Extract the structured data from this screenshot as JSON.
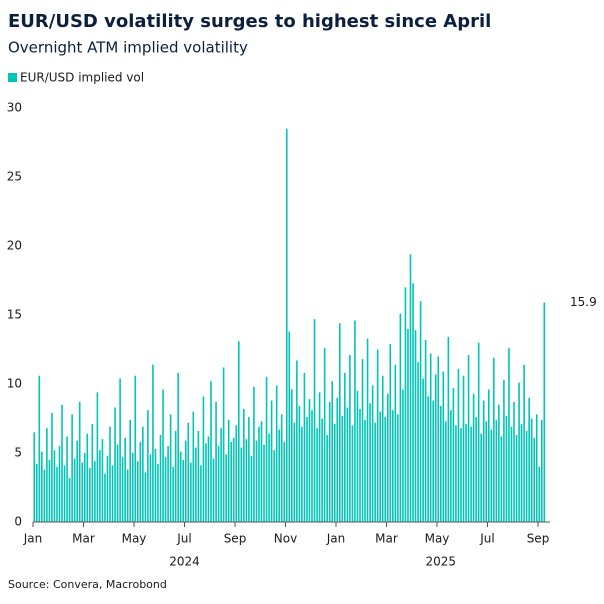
{
  "chart_data": {
    "type": "bar",
    "title": "EUR/USD volatility surges to highest since April",
    "subtitle": "Overnight ATM implied volatility",
    "source": "Source: Convera, Macrobond",
    "categories": [
      "Jan",
      null,
      null,
      null,
      null,
      null,
      null,
      null,
      null,
      null,
      null,
      null,
      null,
      null,
      null,
      null,
      null,
      null,
      null,
      null,
      "Mar",
      null,
      null,
      null,
      null,
      null,
      null,
      null,
      null,
      null,
      null,
      null,
      null,
      null,
      null,
      null,
      null,
      null,
      null,
      null,
      "May",
      null,
      null,
      null,
      null,
      null,
      null,
      null,
      null,
      null,
      null,
      null,
      null,
      null,
      null,
      null,
      null,
      null,
      null,
      null,
      "Jul",
      null,
      null,
      null,
      null,
      null,
      null,
      null,
      null,
      null,
      null,
      null,
      null,
      null,
      null,
      null,
      null,
      null,
      null,
      null,
      "Sep",
      null,
      null,
      null,
      null,
      null,
      null,
      null,
      null,
      null,
      null,
      null,
      null,
      null,
      null,
      null,
      null,
      null,
      null,
      null,
      "Nov",
      null,
      null,
      null,
      null,
      null,
      null,
      null,
      null,
      null,
      null,
      null,
      null,
      null,
      null,
      null,
      null,
      null,
      null,
      null,
      "Jan",
      null,
      null,
      null,
      null,
      null,
      null,
      null,
      null,
      null,
      null,
      null,
      null,
      null,
      null,
      null,
      null,
      null,
      null,
      null,
      "Mar",
      null,
      null,
      null,
      null,
      null,
      null,
      null,
      null,
      null,
      null,
      null,
      null,
      null,
      null,
      null,
      null,
      null,
      null,
      null,
      "May",
      null,
      null,
      null,
      null,
      null,
      null,
      null,
      null,
      null,
      null,
      null,
      null,
      null,
      null,
      null,
      null,
      null,
      null,
      null,
      "Jul",
      null,
      null,
      null,
      null,
      null,
      null,
      null,
      null,
      null,
      null,
      null,
      null,
      null,
      null,
      null,
      null,
      null,
      null,
      null,
      "Sep",
      null,
      null
    ],
    "x_group_labels": [
      "2024",
      "2025"
    ],
    "series": [
      {
        "name": "EUR/USD implied vol",
        "color": "#00c5b5",
        "values": [
          6.5,
          4.2,
          10.6,
          5.1,
          3.8,
          6.8,
          4.5,
          7.9,
          5.2,
          4.0,
          5.5,
          8.5,
          4.1,
          6.2,
          3.2,
          7.8,
          4.6,
          5.9,
          8.7,
          4.3,
          5.0,
          6.4,
          3.9,
          7.1,
          4.4,
          9.4,
          5.2,
          6.0,
          3.5,
          4.8,
          6.9,
          4.1,
          8.3,
          5.6,
          10.4,
          4.7,
          6.1,
          3.8,
          7.4,
          5.0,
          10.6,
          4.4,
          5.8,
          6.9,
          3.6,
          8.1,
          4.9,
          11.4,
          5.3,
          4.2,
          6.3,
          9.6,
          4.7,
          5.5,
          7.8,
          4.0,
          6.6,
          10.8,
          5.1,
          4.5,
          5.9,
          7.2,
          4.3,
          8.0,
          5.4,
          6.6,
          4.1,
          9.1,
          5.7,
          6.2,
          10.2,
          4.6,
          8.7,
          5.5,
          6.8,
          11.2,
          4.9,
          7.4,
          5.8,
          6.1,
          7.0,
          13.1,
          5.4,
          8.2,
          6.0,
          7.6,
          4.8,
          9.8,
          5.9,
          6.9,
          7.3,
          5.6,
          10.5,
          6.4,
          8.8,
          5.2,
          9.9,
          6.7,
          7.8,
          5.8,
          28.5,
          13.8,
          9.6,
          7.2,
          11.7,
          8.4,
          6.9,
          10.8,
          7.6,
          8.9,
          8.1,
          14.7,
          6.8,
          9.4,
          7.5,
          12.6,
          6.3,
          8.7,
          10.2,
          7.1,
          9.0,
          14.4,
          7.7,
          10.8,
          8.3,
          12.1,
          7.0,
          14.6,
          9.5,
          8.2,
          11.8,
          7.4,
          13.3,
          8.6,
          9.9,
          7.2,
          12.5,
          8.0,
          10.6,
          7.6,
          9.3,
          12.9,
          8.1,
          11.4,
          7.8,
          15.1,
          9.6,
          17.0,
          14.0,
          19.4,
          17.3,
          13.9,
          11.6,
          16.0,
          10.4,
          13.2,
          9.1,
          12.2,
          8.8,
          10.7,
          12.0,
          8.4,
          10.9,
          7.3,
          13.4,
          8.1,
          9.7,
          7.0,
          11.1,
          6.8,
          10.6,
          7.1,
          12.1,
          6.9,
          9.3,
          7.6,
          13.0,
          6.4,
          8.8,
          7.3,
          9.6,
          6.7,
          11.9,
          7.4,
          8.5,
          6.2,
          10.3,
          7.7,
          12.6,
          6.9,
          8.7,
          6.3,
          10.1,
          7.1,
          11.4,
          6.6,
          9.0,
          7.5,
          6.1,
          7.8,
          4.0,
          7.4,
          15.9
        ]
      }
    ],
    "ylim": [
      0,
      30
    ],
    "yticks": [
      0,
      5,
      10,
      15,
      20,
      25,
      30
    ],
    "grid": false
  }
}
